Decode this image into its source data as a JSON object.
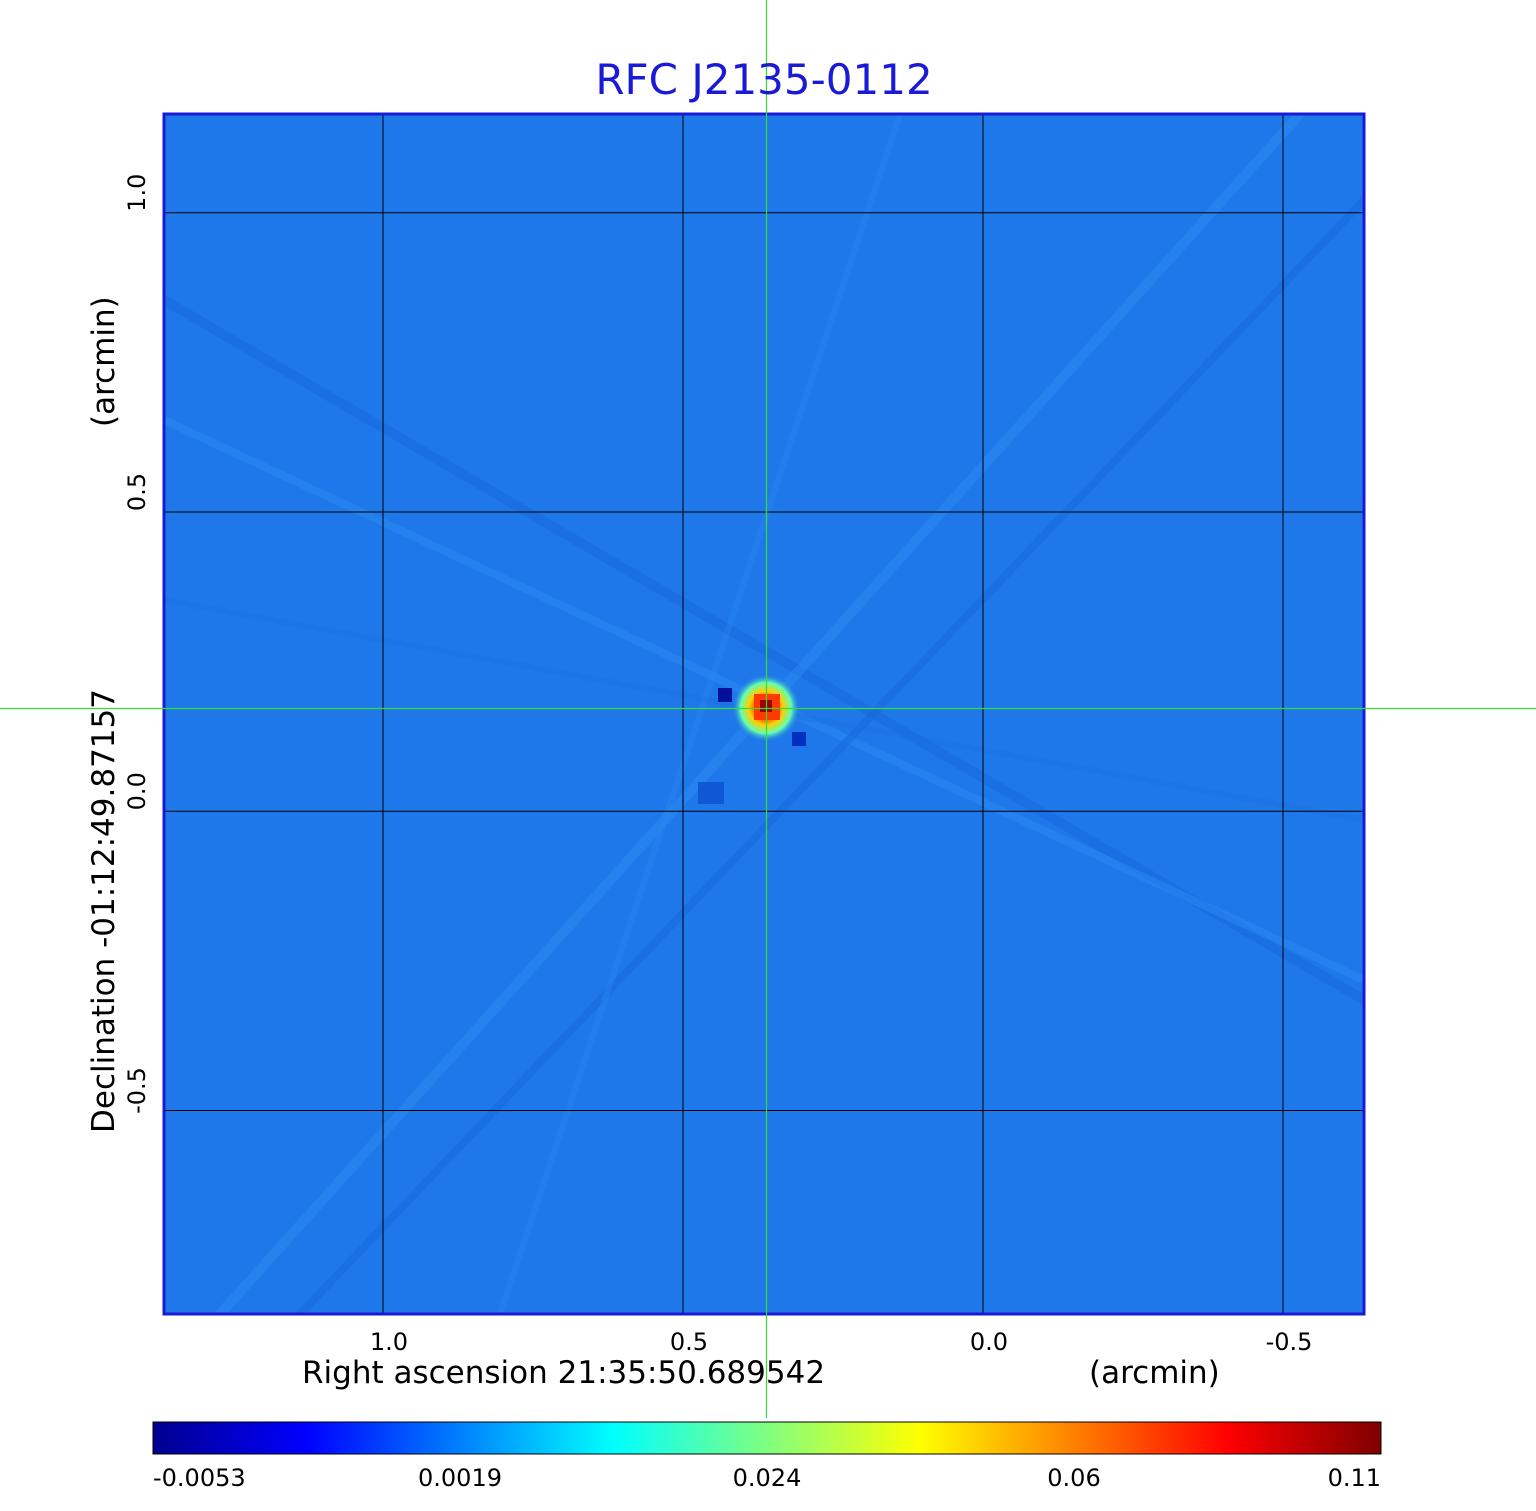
{
  "chart_data": {
    "type": "heatmap",
    "title": "RFC J2135-0112",
    "xlabel": "Right ascension  21:35:50.689542",
    "xunit": "(arcmin)",
    "ylabel": "Declination  -01:12:49.87157",
    "yunit": "(arcmin)",
    "xlim": [
      1.365,
      -0.635
    ],
    "ylim": [
      -0.84,
      1.165
    ],
    "x_ticks": [
      1.0,
      0.5,
      0.0,
      -0.5
    ],
    "y_ticks": [
      1.0,
      0.5,
      0.0,
      -0.5
    ],
    "x_tick_labels": [
      "1.0",
      "0.5",
      "0.0",
      "-0.5"
    ],
    "y_tick_labels": [
      "1.0",
      "0.5",
      "0.0",
      "-0.5"
    ],
    "grid": true,
    "crosshair": {
      "x": 0.36,
      "y": 0.17
    },
    "peak": {
      "x": 0.36,
      "y": 0.17,
      "value": 0.11
    },
    "colorbar": {
      "tick_labels": [
        "-0.0053",
        "0.0019",
        "0.024",
        "0.06",
        "0.11"
      ],
      "min": -0.0053,
      "max": 0.11,
      "colormap": "jet"
    },
    "colors": {
      "title": "#1a1ad6",
      "frame": "#1a1ad6",
      "crosshair": "#33dd33",
      "background_field": "#1f78ea"
    }
  }
}
